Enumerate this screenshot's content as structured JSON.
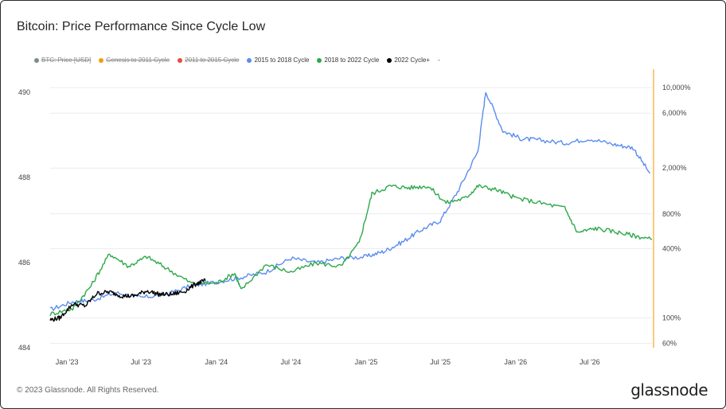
{
  "title": "Bitcoin: Price Performance Since Cycle Low",
  "footer": "© 2023 Glassnode. All Rights Reserved.",
  "brand": "glassnode",
  "legend": [
    {
      "label": "BTC: Price [USD]",
      "color": "#7f8c8d",
      "active": false
    },
    {
      "label": "Genesis to 2011 Cycle",
      "color": "#f39c12",
      "active": false
    },
    {
      "label": "2011 to 2015 Cycle",
      "color": "#e74c3c",
      "active": false
    },
    {
      "label": "2015 to 2018 Cycle",
      "color": "#5b8def",
      "active": true
    },
    {
      "label": "2018 to 2022 Cycle",
      "color": "#2ea84a",
      "active": true
    },
    {
      "label": "2022 Cycle+",
      "color": "#000000",
      "active": true
    },
    {
      "label": "-",
      "color": "",
      "active": true
    }
  ],
  "chart_data": {
    "type": "line",
    "title": "Bitcoin: Price Performance Since Cycle Low",
    "x_ticks": [
      "Jan '23",
      "Jul '23",
      "Jan '24",
      "Jul '24",
      "Jan '25",
      "Jul '25",
      "Jan '26",
      "Jul '26"
    ],
    "x_range": [
      "2022-11-21",
      "2026-11-30"
    ],
    "left_axis": {
      "ticks": [
        484,
        486,
        488,
        490
      ],
      "range": [
        484,
        490.5
      ]
    },
    "right_axis": {
      "scale": "log",
      "ticks": [
        "60%",
        "100%",
        "400%",
        "800%",
        "2,000%",
        "6,000%",
        "10,000%"
      ],
      "tick_values": [
        60,
        100,
        400,
        800,
        2000,
        6000,
        10000
      ],
      "range": [
        55,
        14000
      ]
    },
    "grid": true,
    "legend_position": "top-left",
    "series": [
      {
        "name": "2015 to 2018 Cycle",
        "color": "#5b8def",
        "axis": "right",
        "x": [
          "2022-11-21",
          "2023-01-15",
          "2023-03-01",
          "2023-05-01",
          "2023-07-01",
          "2023-09-01",
          "2023-11-01",
          "2024-01-01",
          "2024-03-01",
          "2024-05-01",
          "2024-07-01",
          "2024-09-01",
          "2024-11-01",
          "2025-01-01",
          "2025-02-15",
          "2025-04-01",
          "2025-05-15",
          "2025-07-01",
          "2025-08-15",
          "2025-10-01",
          "2025-10-20",
          "2025-12-01",
          "2026-01-15",
          "2026-03-01",
          "2026-05-01",
          "2026-07-01",
          "2026-09-01",
          "2026-10-15",
          "2026-11-25"
        ],
        "y": [
          118,
          138,
          142,
          165,
          150,
          160,
          190,
          205,
          225,
          250,
          330,
          300,
          330,
          340,
          380,
          460,
          580,
          700,
          1300,
          2800,
          9300,
          4200,
          3600,
          3500,
          3300,
          3600,
          3200,
          3000,
          1800
        ]
      },
      {
        "name": "2018 to 2022 Cycle",
        "color": "#2ea84a",
        "axis": "right",
        "x": [
          "2022-11-21",
          "2023-01-15",
          "2023-03-01",
          "2023-04-15",
          "2023-06-01",
          "2023-07-15",
          "2023-09-01",
          "2023-11-01",
          "2024-01-01",
          "2024-02-15",
          "2024-03-01",
          "2024-05-01",
          "2024-07-01",
          "2024-09-01",
          "2024-11-01",
          "2024-12-15",
          "2025-01-15",
          "2025-03-01",
          "2025-04-15",
          "2025-06-01",
          "2025-07-15",
          "2025-09-01",
          "2025-10-01",
          "2025-11-15",
          "2026-01-01",
          "2026-03-01",
          "2026-05-01",
          "2026-06-01",
          "2026-07-15",
          "2026-09-01",
          "2026-10-15",
          "2026-11-30"
        ],
        "y": [
          108,
          120,
          190,
          360,
          280,
          340,
          270,
          200,
          200,
          245,
          175,
          290,
          250,
          300,
          280,
          450,
          1200,
          1400,
          1350,
          1400,
          1000,
          1100,
          1400,
          1300,
          1100,
          1000,
          900,
          550,
          600,
          560,
          520,
          480
        ]
      },
      {
        "name": "2022 Cycle+",
        "color": "#000000",
        "axis": "right",
        "x": [
          "2022-11-21",
          "2022-12-15",
          "2023-01-15",
          "2023-02-15",
          "2023-03-15",
          "2023-04-15",
          "2023-05-15",
          "2023-06-15",
          "2023-07-15",
          "2023-08-15",
          "2023-09-15",
          "2023-10-15",
          "2023-11-15",
          "2023-12-05"
        ],
        "y": [
          96,
          100,
          132,
          127,
          163,
          168,
          155,
          155,
          172,
          160,
          160,
          170,
          200,
          210
        ]
      }
    ]
  }
}
